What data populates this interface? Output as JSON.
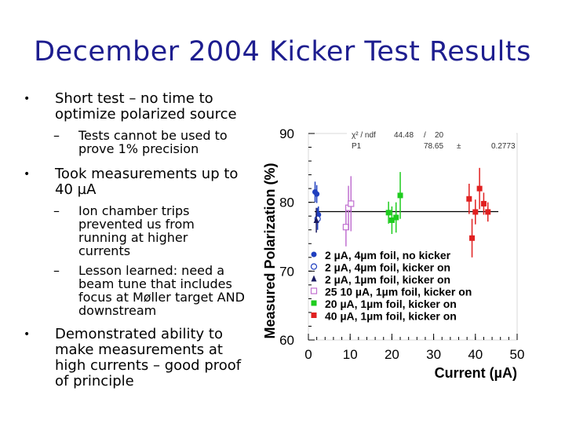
{
  "slide": {
    "title": "December 2004 Kicker Test Results",
    "bullets": [
      {
        "text": "Short test – no time to optimize polarized source",
        "subs": [
          "Tests cannot be used to prove 1% precision"
        ]
      },
      {
        "text": "Took measurements up to 40 µA",
        "subs": [
          "Ion chamber trips prevented us from running at higher currents",
          "Lesson learned: need a beam tune that includes focus at Møller target AND downstream"
        ]
      },
      {
        "text": "Demonstrated ability to make measurements at high currents – good proof of principle",
        "subs": []
      }
    ]
  },
  "chart_data": {
    "type": "scatter",
    "title": "",
    "xlabel": "Current (µA)",
    "ylabel": "Measured Polarization (%)",
    "xlim": [
      0,
      50
    ],
    "ylim": [
      60,
      90
    ],
    "x_ticks": [
      "0",
      "10",
      "20",
      "30",
      "40",
      "50"
    ],
    "y_ticks": [
      "60",
      "70",
      "80",
      "90"
    ],
    "fit_box": {
      "row1": [
        "χ² / ndf",
        "44.48",
        "/",
        "20"
      ],
      "row2": [
        "P1",
        "78.65",
        "±",
        "0.2773"
      ]
    },
    "fit_line_value": 78.65,
    "legend_position": "bottom-right",
    "series": [
      {
        "name": "2 µA, 4µm foil, no kicker",
        "marker": "circle-filled",
        "color": "#1f3fbf",
        "points": [
          {
            "x": 1.6,
            "y": 81.5,
            "err": 1.5
          },
          {
            "x": 2.0,
            "y": 81.2,
            "err": 1.3
          },
          {
            "x": 2.4,
            "y": 78.2,
            "err": 1.2
          }
        ]
      },
      {
        "name": "2 µA, 4µm foil, kicker on",
        "marker": "circle-open",
        "color": "#1f3fbf",
        "points": [
          {
            "x": 2.2,
            "y": 77.6,
            "err": 1.6
          }
        ]
      },
      {
        "name": "2 µA, 1µm foil, kicker on",
        "marker": "triangle-filled",
        "color": "#1a1a60",
        "points": [
          {
            "x": 1.9,
            "y": 77.4,
            "err": 1.8
          }
        ]
      },
      {
        "name": "25 10 µA, 1µm foil, kicker on",
        "marker": "square-open",
        "color": "#c070d0",
        "points": [
          {
            "x": 9.0,
            "y": 76.4,
            "err": 2.8
          },
          {
            "x": 9.6,
            "y": 79.2,
            "err": 3.2
          },
          {
            "x": 10.2,
            "y": 79.8,
            "err": 4.0
          }
        ]
      },
      {
        "name": "20 µA, 1µm foil, kicker on",
        "marker": "square-filled",
        "color": "#1fcc1f",
        "points": [
          {
            "x": 19.2,
            "y": 78.5,
            "err": 1.6
          },
          {
            "x": 20.0,
            "y": 77.4,
            "err": 2.0
          },
          {
            "x": 21.0,
            "y": 77.8,
            "err": 2.2
          },
          {
            "x": 22.0,
            "y": 81.0,
            "err": 3.4
          }
        ]
      },
      {
        "name": "40 µA, 1µm foil, kicker on",
        "marker": "square-filled",
        "color": "#e02020",
        "points": [
          {
            "x": 38.5,
            "y": 80.5,
            "err": 2.2
          },
          {
            "x": 39.2,
            "y": 74.8,
            "err": 2.8
          },
          {
            "x": 40.0,
            "y": 78.6,
            "err": 1.8
          },
          {
            "x": 41.0,
            "y": 82.0,
            "err": 3.0
          },
          {
            "x": 42.0,
            "y": 79.8,
            "err": 1.6
          },
          {
            "x": 43.0,
            "y": 78.6,
            "err": 1.4
          }
        ]
      }
    ]
  }
}
